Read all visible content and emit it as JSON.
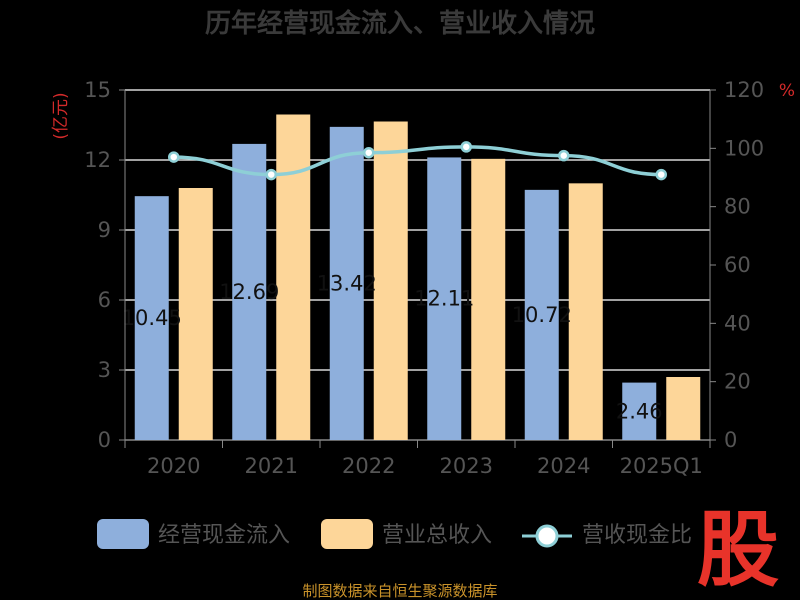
{
  "chart_data": {
    "type": "bar",
    "title": "历年经营现金流入、营业收入情况",
    "categories": [
      "2020",
      "2021",
      "2022",
      "2023",
      "2024",
      "2025Q1"
    ],
    "series": [
      {
        "name": "经营现金流入",
        "type": "bar",
        "axis": "left",
        "color": "#8eafdc",
        "values": [
          10.45,
          12.69,
          13.42,
          12.11,
          10.72,
          2.46
        ],
        "labels": [
          "10.45",
          "12.69",
          "13.42",
          "12.11",
          "10.72",
          "2.46"
        ]
      },
      {
        "name": "营业总收入",
        "type": "bar",
        "axis": "left",
        "color": "#fdd699",
        "values": [
          10.8,
          13.95,
          13.65,
          12.05,
          11.0,
          2.7
        ]
      },
      {
        "name": "营收现金比",
        "type": "line",
        "axis": "right",
        "color": "#8ecfd6",
        "values": [
          97,
          91,
          98.5,
          100.5,
          97.5,
          91
        ]
      }
    ],
    "y_left": {
      "unit": "(亿元)",
      "min": 0,
      "max": 15,
      "ticks": [
        "0",
        "3",
        "6",
        "9",
        "12",
        "15"
      ]
    },
    "y_right": {
      "unit": "%",
      "min": 0,
      "max": 120,
      "ticks": [
        "0",
        "20",
        "40",
        "60",
        "80",
        "100",
        "120"
      ]
    },
    "grid": true,
    "legend_position": "bottom"
  },
  "legend": {
    "items": [
      "经营现金流入",
      "营业总收入",
      "营收现金比"
    ]
  },
  "footer": {
    "source": "制图数据来自恒生聚源数据库"
  },
  "badge": {
    "text": "股"
  }
}
